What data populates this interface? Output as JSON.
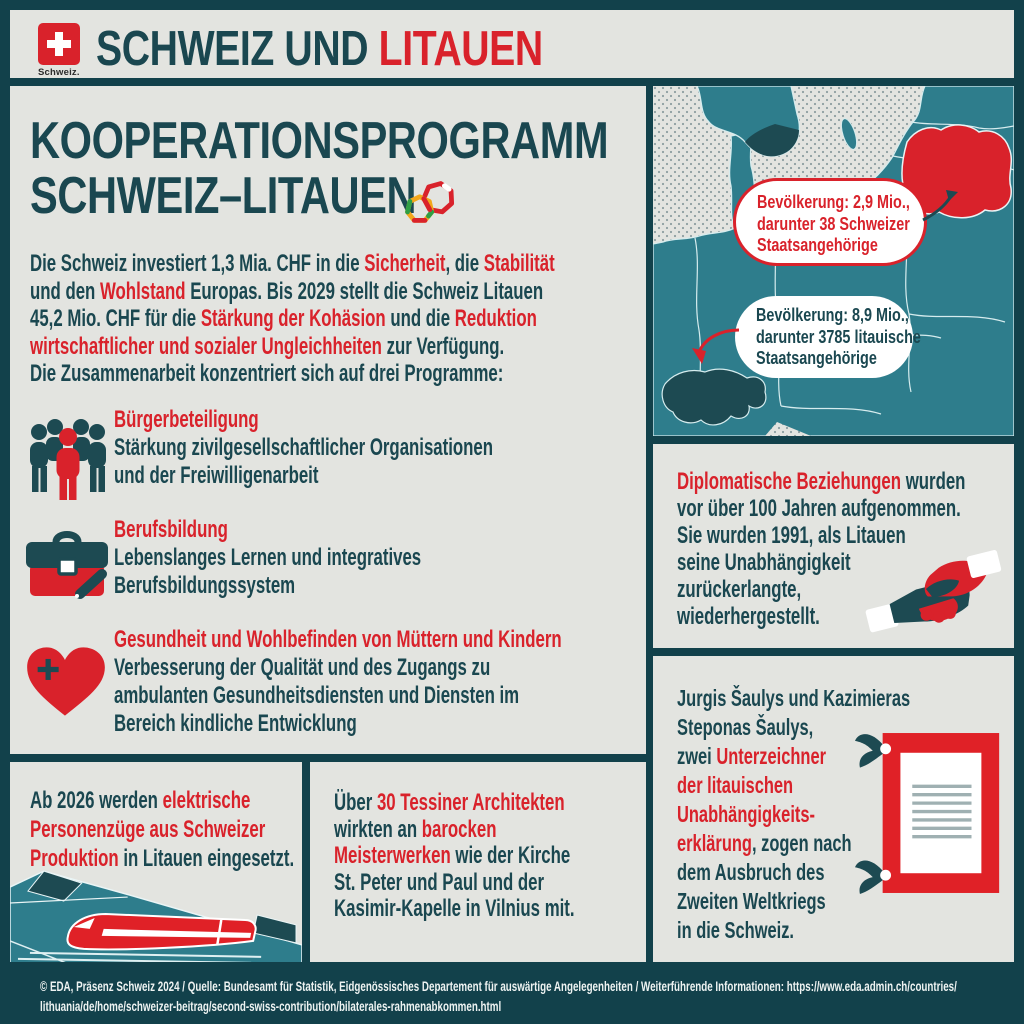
{
  "colors": {
    "background": "#12414b",
    "panel": "#e3e4e0",
    "accent_red": "#d9222b",
    "text_dark_teal": "#1a4750",
    "map_land": "#2e7d8c",
    "map_land_dark": "#1d4a52"
  },
  "icons": {
    "logo": "swiss-cross-flag",
    "title": "interlocked-rings",
    "program_0": "people-group",
    "program_1": "briefcase-pen",
    "program_2": "heart-plus",
    "diplomacy": "handshake",
    "signers": "document-ribbon",
    "trains": "train-tunnel",
    "map": "europe-map"
  },
  "header": {
    "logo_label": "Schweiz.",
    "title_part1": "SCHWEIZ UND ",
    "title_part2": "LITAUEN"
  },
  "main": {
    "title_line1": "KOOPERATIONSPROGRAMM",
    "title_line2": "SCHWEIZ–LITAUEN",
    "intro_segments": [
      {
        "t": "Die Schweiz investiert 1,3 Mia. CHF in die ",
        "c": "d"
      },
      {
        "t": "Sicherheit",
        "c": "r"
      },
      {
        "t": ", die ",
        "c": "d"
      },
      {
        "t": "Stabilität",
        "c": "r"
      },
      {
        "t": "\nund den ",
        "c": "d"
      },
      {
        "t": "Wohlstand",
        "c": "r"
      },
      {
        "t": " Europas. Bis 2029 stellt die Schweiz Litauen\n45,2 Mio. CHF für die ",
        "c": "d"
      },
      {
        "t": "Stärkung der Kohäsion",
        "c": "r"
      },
      {
        "t": " und die ",
        "c": "d"
      },
      {
        "t": "Reduktion\nwirtschaftlicher und sozialer Ungleichheiten",
        "c": "r"
      },
      {
        "t": " zur Verfügung.\nDie Zusammenarbeit konzentriert sich auf drei Programme:",
        "c": "d"
      }
    ],
    "programs": [
      {
        "icon": "people-group",
        "title": "Bürgerbeteiligung",
        "desc": "Stärkung zivilgesellschaftlicher Organisationen\nund der Freiwilligenarbeit"
      },
      {
        "icon": "briefcase-pen",
        "title": "Berufsbildung",
        "desc": "Lebenslanges Lernen und integratives\nBerufsbildungssystem"
      },
      {
        "icon": "heart-plus",
        "title": "Gesundheit und Wohlbefinden von Müttern und Kindern",
        "desc": "Verbesserung der Qualität und des Zugangs zu\nambulanten Gesundheitsdiensten und Diensten im\nBereich kindliche Entwicklung"
      }
    ]
  },
  "map": {
    "bubble_lithuania": "Bevölkerung: 2,9 Mio.,\ndarunter 38 Schweizer\nStaatsangehörige",
    "bubble_switzerland": "Bevölkerung: 8,9 Mio.,\ndarunter 3785 litauische\nStaatsangehörige"
  },
  "diplomacy": {
    "segments": [
      {
        "t": "Diplomatische Beziehungen",
        "c": "r"
      },
      {
        "t": " wurden\nvor über 100 Jahren aufgenommen.\nSie wurden 1991, als Litauen\nseine Unabhängigkeit\nzurückerlangte,\nwiederhergestellt.",
        "c": "d"
      }
    ]
  },
  "signers": {
    "segments": [
      {
        "t": "Jurgis Šaulys und Kazimieras\nSteponas Šaulys,\nzwei ",
        "c": "d"
      },
      {
        "t": "Unterzeichner\nder litauischen\nUnabhängigkeits-\nerklärung",
        "c": "r"
      },
      {
        "t": ", zogen nach\ndem Ausbruch des\nZweiten Weltkriegs\nin die Schweiz.",
        "c": "d"
      }
    ]
  },
  "trains": {
    "segments": [
      {
        "t": "Ab 2026 werden ",
        "c": "d"
      },
      {
        "t": "elektrische\nPersonenzüge aus Schweizer\nProduktion",
        "c": "r"
      },
      {
        "t": " in Litauen eingesetzt.",
        "c": "d"
      }
    ]
  },
  "architects": {
    "segments": [
      {
        "t": "Über ",
        "c": "d"
      },
      {
        "t": "30 Tessiner Architekten",
        "c": "r"
      },
      {
        "t": "\nwirkten an ",
        "c": "d"
      },
      {
        "t": "barocken\nMeisterwerken",
        "c": "r"
      },
      {
        "t": " wie der Kirche\nSt. Peter und Paul und der\nKasimir-Kapelle in Vilnius mit.",
        "c": "d"
      }
    ]
  },
  "footer": {
    "line1": "© EDA, Präsenz Schweiz 2024 / Quelle: Bundesamt für Statistik, Eidgenössisches Departement für auswärtige Angelegenheiten / Weiterführende Informationen: https://www.eda.admin.ch/countries/",
    "line2": "lithuania/de/home/schweizer-beitrag/second-swiss-contribution/bilaterales-rahmenabkommen.html"
  }
}
